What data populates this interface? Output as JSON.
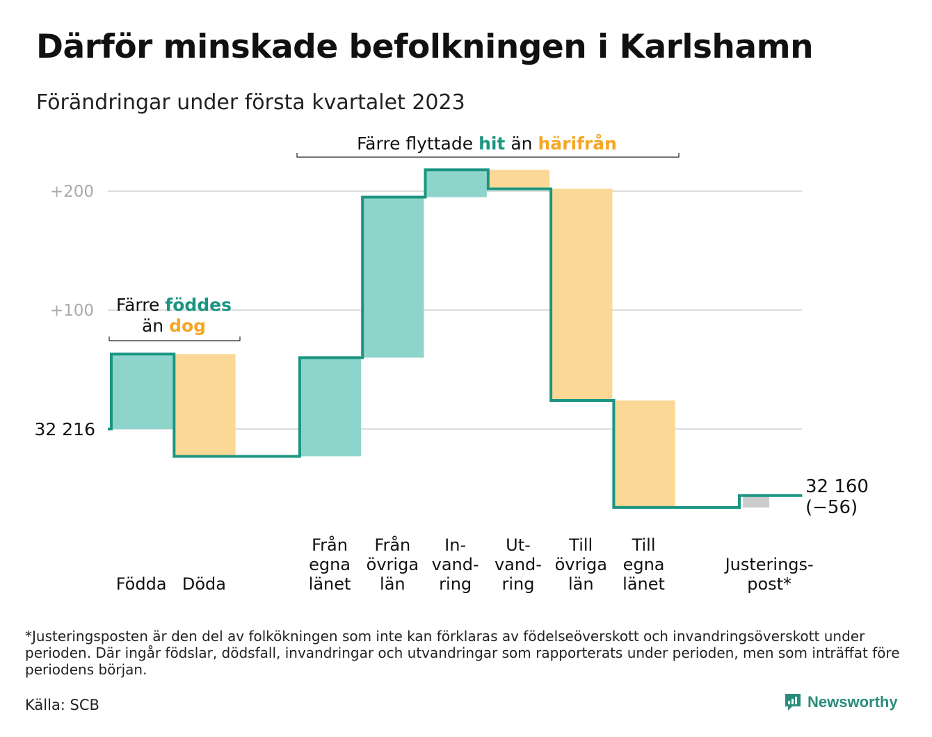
{
  "title": "Därför minskade befolkningen i Karlshamn",
  "subtitle": "Förändringar under första kvartalet 2023",
  "colors": {
    "inflow": "#1a9581",
    "inflow_fill": "#8dd5cb",
    "outflow": "#f5a623",
    "outflow_fill": "#fbd895",
    "adjustment_fill": "#cccccc",
    "grid": "#dddddd",
    "tick_text": "#aaaaaa",
    "brand": "#2a8c7a"
  },
  "chart_data": {
    "type": "waterfall",
    "start_value": 32216,
    "start_label": "32 216",
    "end_label_value": "32 160",
    "end_label_change": "(−56)",
    "y_ticks": [
      {
        "value": 100,
        "label": "+100"
      },
      {
        "value": 200,
        "label": "+200"
      }
    ],
    "categories": [
      {
        "label": [
          "Födda"
        ],
        "change": 63,
        "kind": "inflow"
      },
      {
        "label": [
          "Döda"
        ],
        "change": -86,
        "kind": "outflow"
      },
      {
        "label": [
          ""
        ],
        "change": 0,
        "kind": "gap"
      },
      {
        "label": [
          "Från",
          "egna",
          "länet"
        ],
        "change": 83,
        "kind": "inflow"
      },
      {
        "label": [
          "Från",
          "övriga",
          "län"
        ],
        "change": 135,
        "kind": "inflow"
      },
      {
        "label": [
          "In-",
          "vand-",
          "ring"
        ],
        "change": 23,
        "kind": "inflow"
      },
      {
        "label": [
          "Ut-",
          "vand-",
          "ring"
        ],
        "change": -16,
        "kind": "outflow"
      },
      {
        "label": [
          "Till",
          "övriga",
          "län"
        ],
        "change": -178,
        "kind": "outflow"
      },
      {
        "label": [
          "Till",
          "egna",
          "länet"
        ],
        "change": -90,
        "kind": "outflow"
      },
      {
        "label": [
          ""
        ],
        "change": 0,
        "kind": "gap"
      },
      {
        "label": [
          "Justerings-",
          "post*"
        ],
        "change": 10,
        "kind": "adjustment"
      }
    ],
    "annotations": [
      {
        "parts": [
          {
            "text": "Färre ",
            "kind": "plain"
          },
          {
            "text": "föddes",
            "kind": "inflow"
          }
        ]
      },
      {
        "parts": [
          {
            "text": "än ",
            "kind": "plain"
          },
          {
            "text": "dog",
            "kind": "outflow"
          }
        ]
      },
      {
        "parts": [
          {
            "text": "Färre flyttade ",
            "kind": "plain"
          },
          {
            "text": "hit",
            "kind": "inflow"
          },
          {
            "text": " än ",
            "kind": "plain"
          },
          {
            "text": "härifrån",
            "kind": "outflow"
          }
        ]
      }
    ]
  },
  "footnote": "*Justeringsposten är den del av folkökningen som inte kan förklaras av födelseöverskott och invandringsöverskott under perioden. Där ingår födslar, dödsfall, invandringar och utvandringar som rapporterats under perioden, men som inträffat före periodens början.",
  "source": "Källa: SCB",
  "brand": {
    "name": "Newsworthy",
    "icon": "newsworthy-logo-icon"
  }
}
